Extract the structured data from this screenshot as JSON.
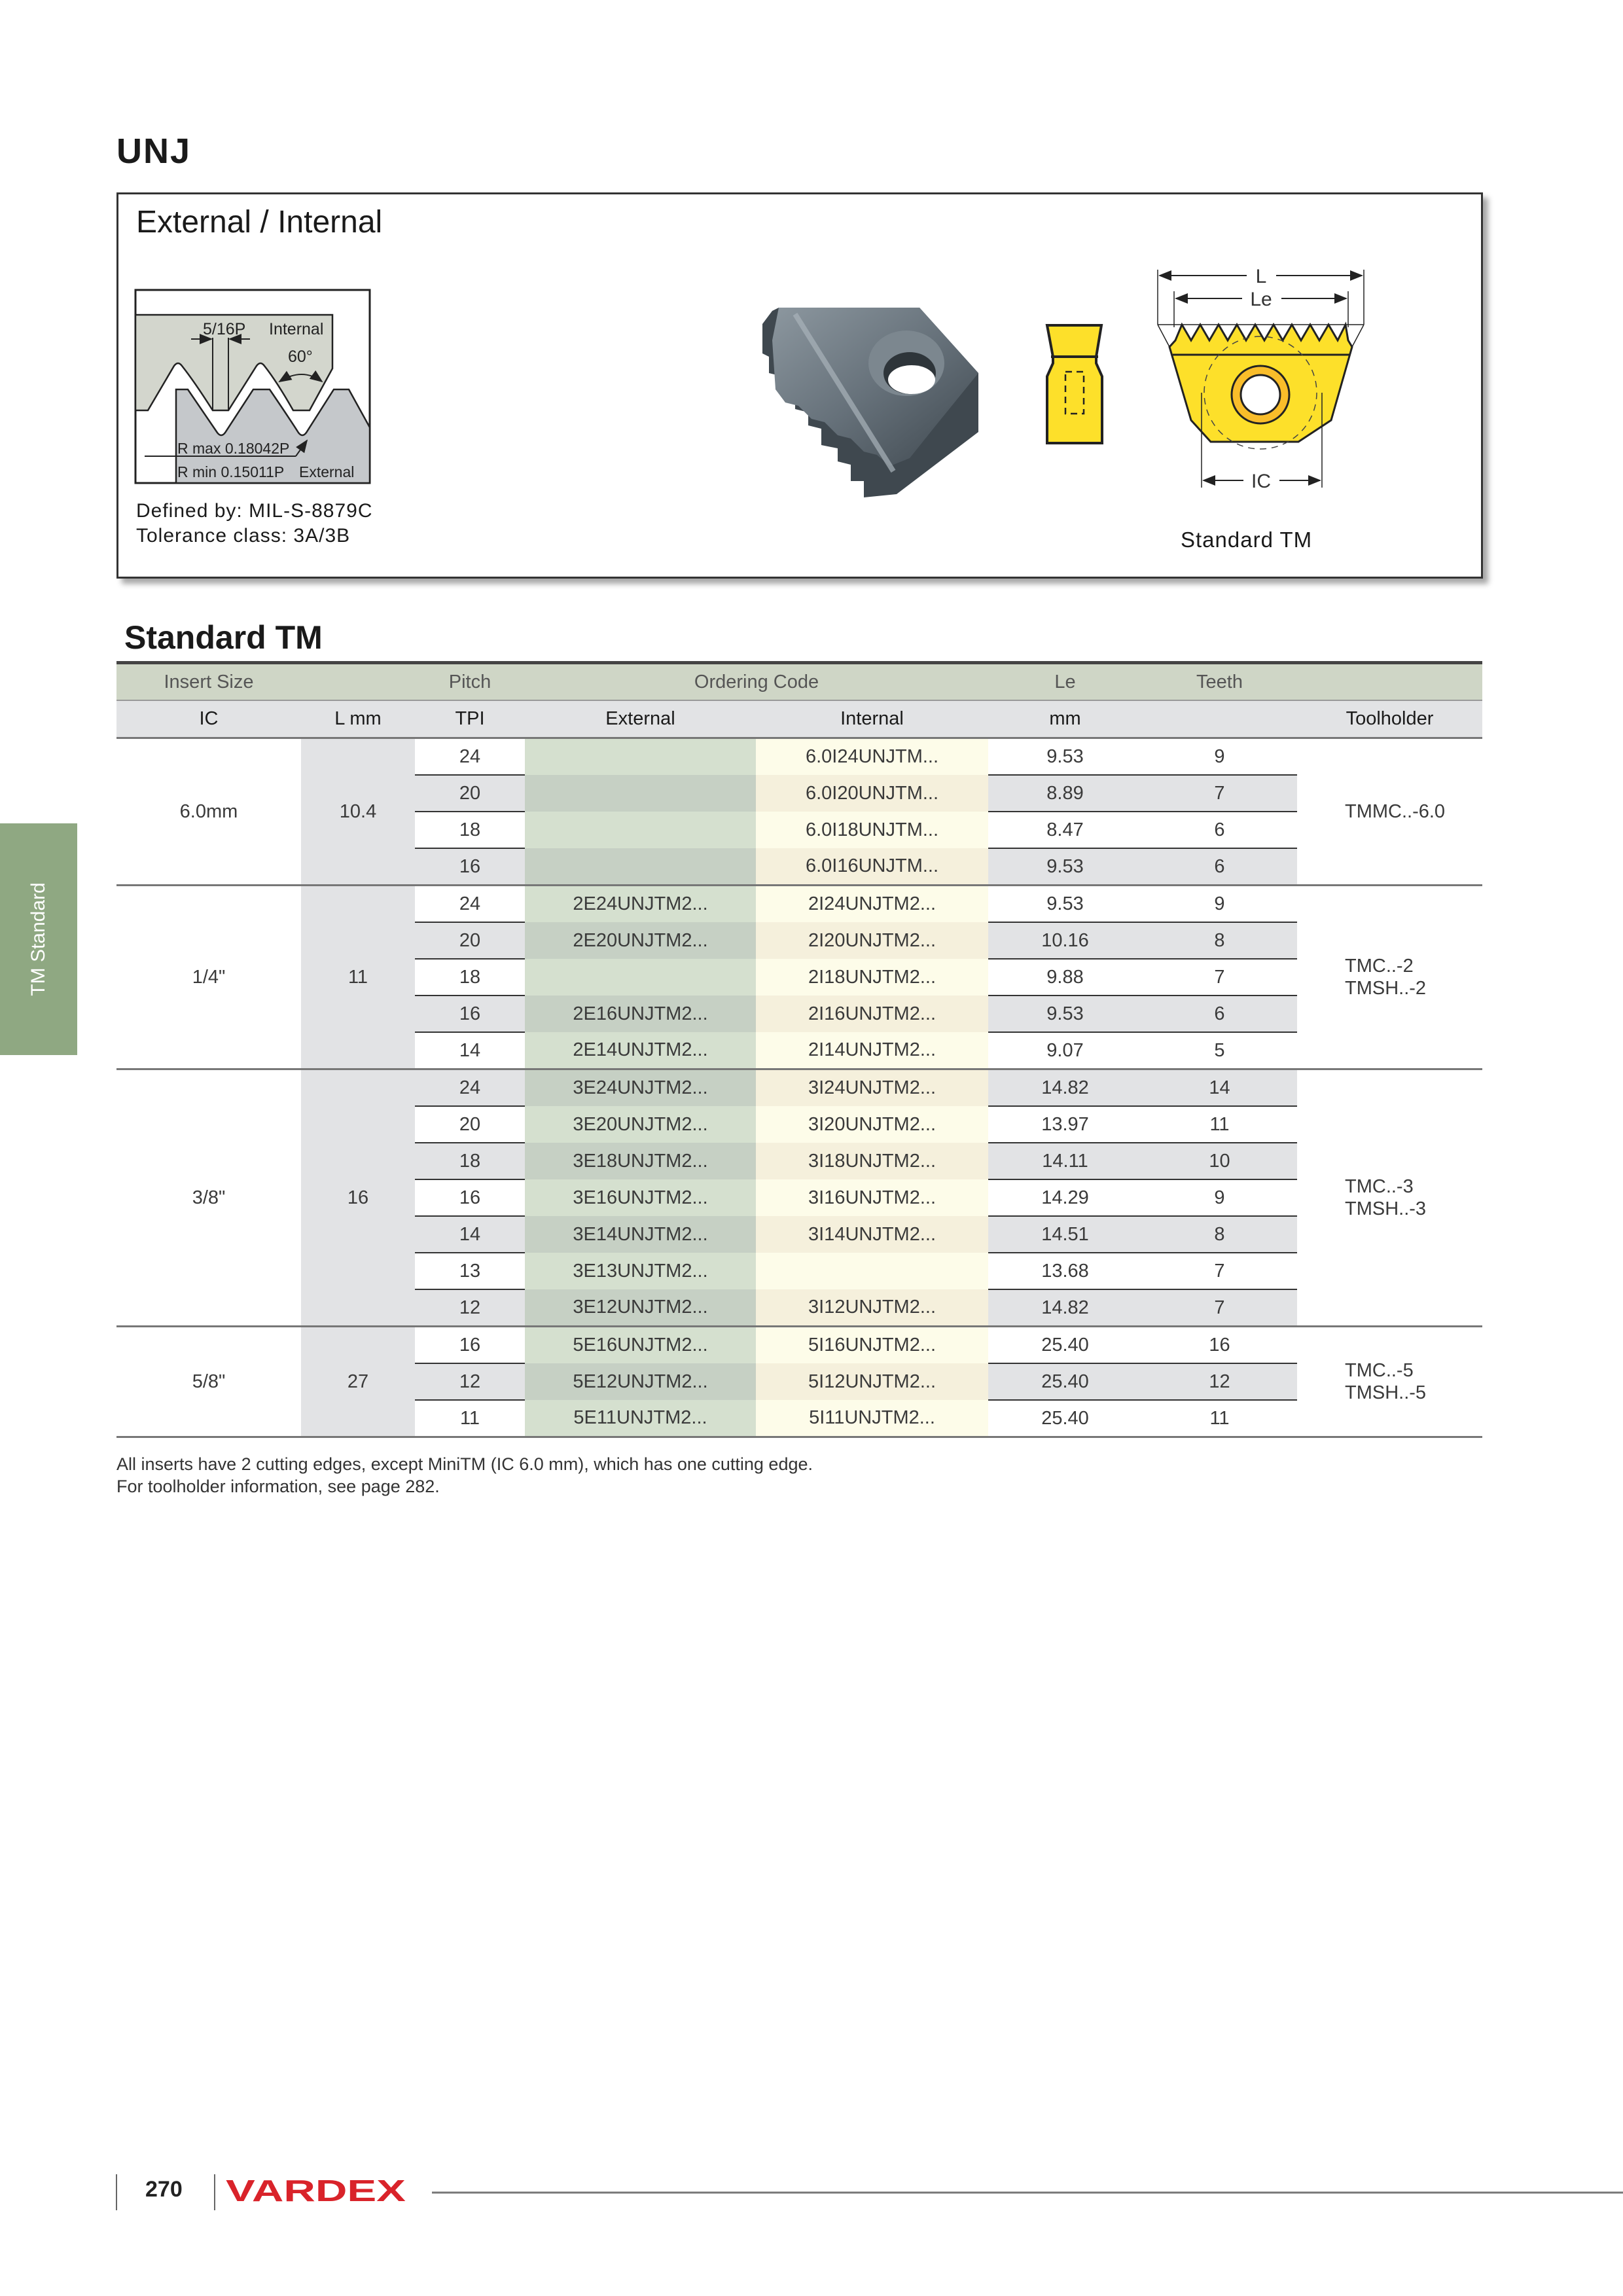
{
  "page": {
    "title": "UNJ",
    "section_title": "Standard TM",
    "side_tab": "TM Standard",
    "page_number": "270",
    "brand": "VARDEX"
  },
  "info_box": {
    "title": "External / Internal",
    "defined_by": "Defined by: MIL-S-8879C",
    "tolerance": "Tolerance class: 3A/3B",
    "caption": "Standard TM",
    "thread_diagram": {
      "pitch_fraction": "5/16P",
      "internal": "Internal",
      "angle": "60°",
      "rmax": "R max 0.18042P",
      "rmin": "R min 0.15011P",
      "external": "External"
    },
    "dimension_labels": {
      "l": "L",
      "le": "Le",
      "ic": "IC"
    }
  },
  "table": {
    "header_top": {
      "insert_size": "Insert Size",
      "pitch": "Pitch",
      "ordering_code": "Ordering Code",
      "le": "Le",
      "teeth": "Teeth"
    },
    "header_sub": {
      "ic": "IC",
      "l": "L mm",
      "tpi": "TPI",
      "external": "External",
      "internal": "Internal",
      "le_unit": "mm",
      "toolholder": "Toolholder"
    },
    "groups": [
      {
        "ic": "6.0mm",
        "l": "10.4",
        "toolholder": [
          "TMMC..-6.0"
        ],
        "rows": [
          {
            "tpi": "24",
            "external": "",
            "internal": "6.0I24UNJTM...",
            "le": "9.53",
            "teeth": "9"
          },
          {
            "tpi": "20",
            "external": "",
            "internal": "6.0I20UNJTM...",
            "le": "8.89",
            "teeth": "7"
          },
          {
            "tpi": "18",
            "external": "",
            "internal": "6.0I18UNJTM...",
            "le": "8.47",
            "teeth": "6"
          },
          {
            "tpi": "16",
            "external": "",
            "internal": "6.0I16UNJTM...",
            "le": "9.53",
            "teeth": "6"
          }
        ]
      },
      {
        "ic": "1/4\"",
        "l": "11",
        "toolholder": [
          "TMC..-2",
          "TMSH..-2"
        ],
        "rows": [
          {
            "tpi": "24",
            "external": "2E24UNJTM2...",
            "internal": "2I24UNJTM2...",
            "le": "9.53",
            "teeth": "9"
          },
          {
            "tpi": "20",
            "external": "2E20UNJTM2...",
            "internal": "2I20UNJTM2...",
            "le": "10.16",
            "teeth": "8"
          },
          {
            "tpi": "18",
            "external": "",
            "internal": "2I18UNJTM2...",
            "le": "9.88",
            "teeth": "7"
          },
          {
            "tpi": "16",
            "external": "2E16UNJTM2...",
            "internal": "2I16UNJTM2...",
            "le": "9.53",
            "teeth": "6"
          },
          {
            "tpi": "14",
            "external": "2E14UNJTM2...",
            "internal": "2I14UNJTM2...",
            "le": "9.07",
            "teeth": "5"
          }
        ]
      },
      {
        "ic": "3/8\"",
        "l": "16",
        "toolholder": [
          "TMC..-3",
          "TMSH..-3"
        ],
        "rows": [
          {
            "tpi": "24",
            "external": "3E24UNJTM2...",
            "internal": "3I24UNJTM2...",
            "le": "14.82",
            "teeth": "14"
          },
          {
            "tpi": "20",
            "external": "3E20UNJTM2...",
            "internal": "3I20UNJTM2...",
            "le": "13.97",
            "teeth": "11"
          },
          {
            "tpi": "18",
            "external": "3E18UNJTM2...",
            "internal": "3I18UNJTM2...",
            "le": "14.11",
            "teeth": "10"
          },
          {
            "tpi": "16",
            "external": "3E16UNJTM2...",
            "internal": "3I16UNJTM2...",
            "le": "14.29",
            "teeth": "9"
          },
          {
            "tpi": "14",
            "external": "3E14UNJTM2...",
            "internal": "3I14UNJTM2...",
            "le": "14.51",
            "teeth": "8"
          },
          {
            "tpi": "13",
            "external": "3E13UNJTM2...",
            "internal": "",
            "le": "13.68",
            "teeth": "7"
          },
          {
            "tpi": "12",
            "external": "3E12UNJTM2...",
            "internal": "3I12UNJTM2...",
            "le": "14.82",
            "teeth": "7"
          }
        ]
      },
      {
        "ic": "5/8\"",
        "l": "27",
        "toolholder": [
          "TMC..-5",
          "TMSH..-5"
        ],
        "rows": [
          {
            "tpi": "16",
            "external": "5E16UNJTM2...",
            "internal": "5I16UNJTM2...",
            "le": "25.40",
            "teeth": "16"
          },
          {
            "tpi": "12",
            "external": "5E12UNJTM2...",
            "internal": "5I12UNJTM2...",
            "le": "25.40",
            "teeth": "12"
          },
          {
            "tpi": "11",
            "external": "5E11UNJTM2...",
            "internal": "5I11UNJTM2...",
            "le": "25.40",
            "teeth": "11"
          }
        ]
      }
    ]
  },
  "notes": [
    "All inserts have 2 cutting edges, except MiniTM (IC 6.0 mm), which has one cutting edge.",
    "For toolholder information, see page 282."
  ],
  "colors": {
    "side_tab": "#8fa882",
    "brand_red": "#d9232a",
    "insert_yellow": "#fde02a",
    "header_green": "#cfd6c6"
  }
}
